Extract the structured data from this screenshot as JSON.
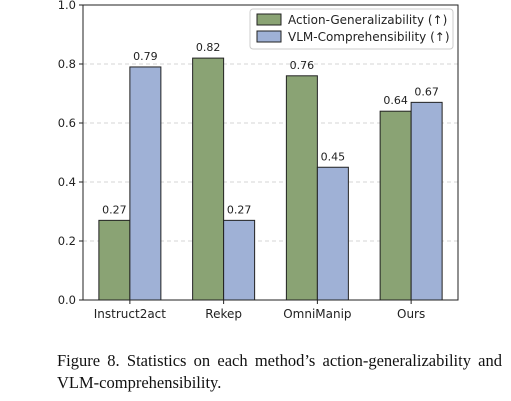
{
  "chart_data": {
    "type": "bar",
    "categories": [
      "Instruct2act",
      "Rekep",
      "OmniManip",
      "Ours"
    ],
    "series": [
      {
        "name": "Action-Generalizability (↑)",
        "values": [
          0.27,
          0.82,
          0.76,
          0.64
        ],
        "labels": [
          "0.27",
          "0.82",
          "0.76",
          "0.64"
        ],
        "color": "#8aa374"
      },
      {
        "name": "VLM-Comprehensibility (↑)",
        "values": [
          0.79,
          0.27,
          0.45,
          0.67
        ],
        "labels": [
          "0.79",
          "0.27",
          "0.45",
          "0.67"
        ],
        "color": "#9fb1d6"
      }
    ],
    "ylim": [
      0,
      1.0
    ],
    "yticks": [
      0.0,
      0.2,
      0.4,
      0.6,
      0.8,
      1.0
    ],
    "ytick_labels": [
      "0.0",
      "0.2",
      "0.4",
      "0.6",
      "0.8",
      "1.0"
    ],
    "grid": true,
    "legend": "top-right",
    "title": "",
    "xlabel": "",
    "ylabel": ""
  },
  "caption": {
    "label": "Figure 8.",
    "text": "Statistics on each method’s action-generalizability and VLM-comprehensibility."
  }
}
